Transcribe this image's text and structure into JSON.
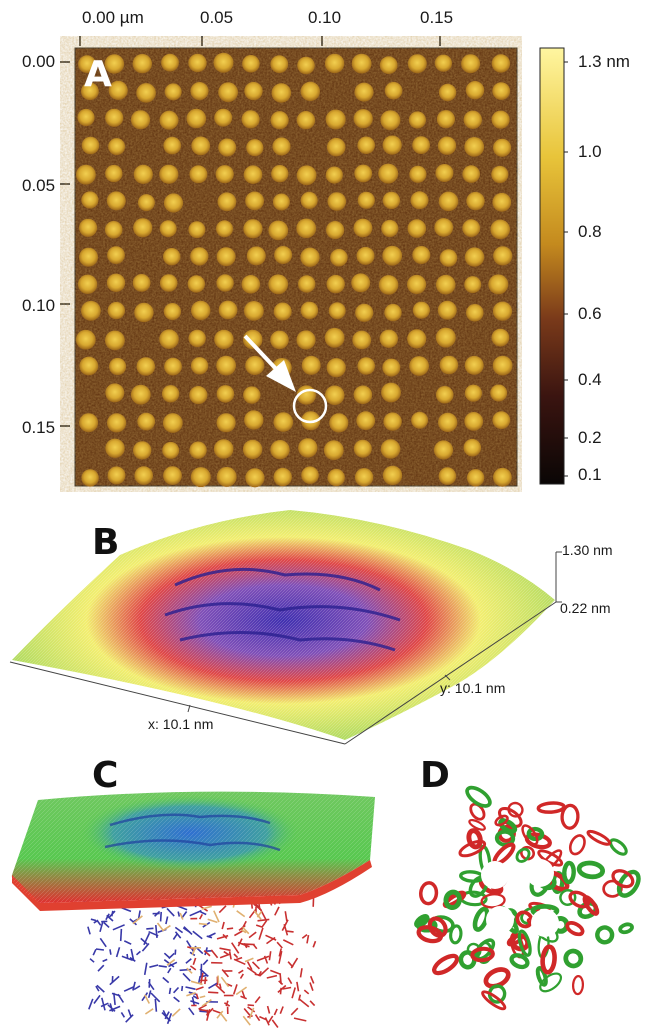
{
  "panel_a": {
    "letter": "A",
    "x_ticks": [
      "0.00 µm",
      "0.05",
      "0.10",
      "0.15"
    ],
    "y_ticks": [
      "0.00",
      "0.05",
      "0.10",
      "0.15"
    ],
    "colorbar": {
      "labels": [
        "1.3 nm",
        "1.0",
        "0.8",
        "0.6",
        "0.4",
        "0.2",
        "0.1"
      ],
      "colors": [
        "#fff6a0",
        "#e8c43a",
        "#c48a1e",
        "#7a3a1a",
        "#3a1410",
        "#0a0605"
      ]
    },
    "background_color": "#5a2c0c",
    "particle_color": "#d8a830",
    "annotation": "arrow pointing to circled particle"
  },
  "panel_b": {
    "letter": "B",
    "z_max_label": "1.30 nm",
    "z_min_label": "0.22 nm",
    "x_axis_label": "x: 10.1 nm",
    "y_axis_label": "y: 10.1 nm",
    "colors": [
      "#a8d860",
      "#f2ee70",
      "#e04848",
      "#4030b0"
    ]
  },
  "panel_c": {
    "letter": "C",
    "colors": [
      "#58c850",
      "#3070d0",
      "#e03030",
      "#3838a8",
      "#c83030",
      "#e0b070"
    ]
  },
  "panel_d": {
    "letter": "D",
    "colors": [
      "#30a030",
      "#d02828"
    ]
  }
}
